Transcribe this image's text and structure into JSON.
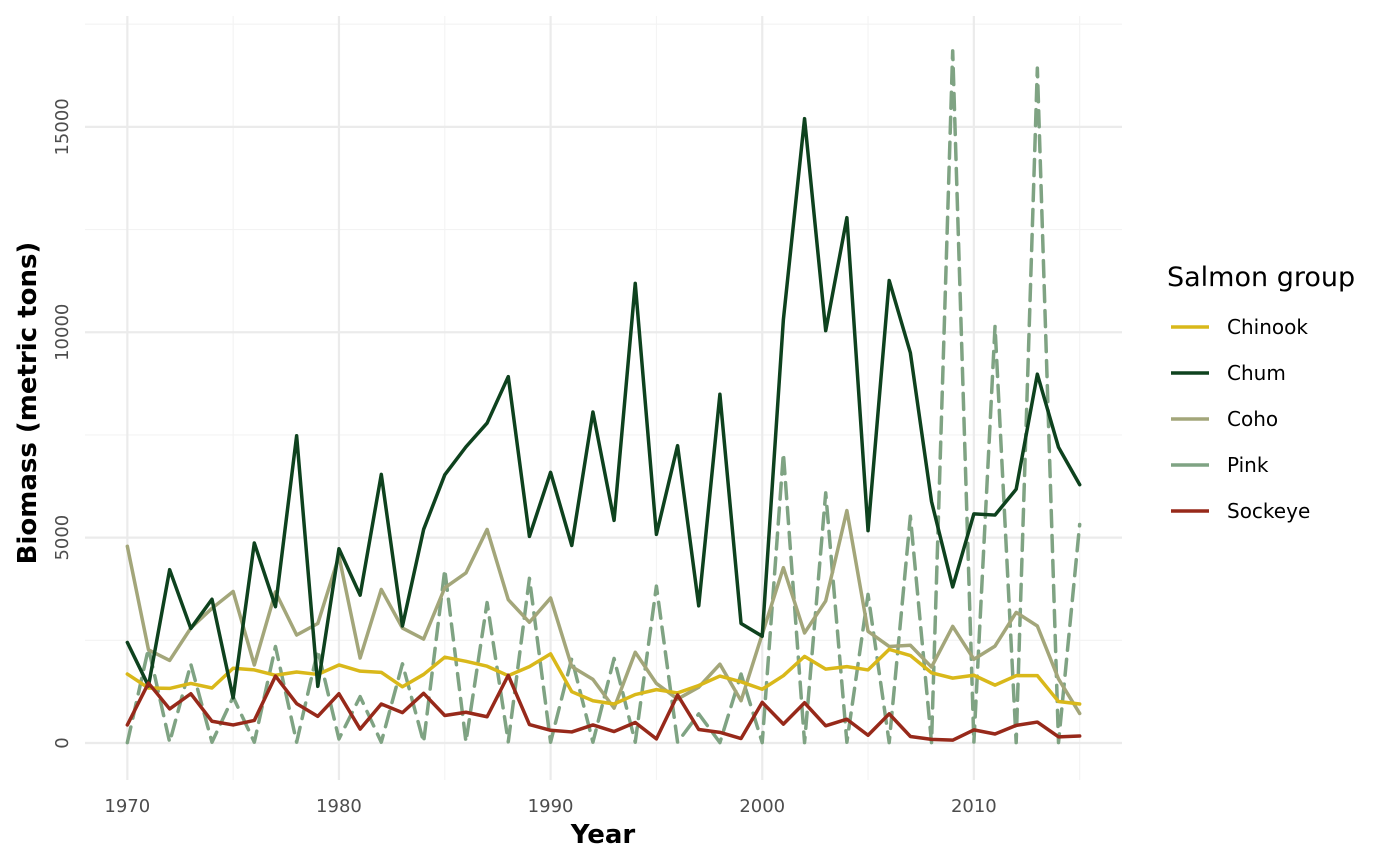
{
  "chart_data": {
    "type": "line",
    "xlabel": "Year",
    "ylabel": "Biomass (metric tons)",
    "xlim": [
      1968,
      2017
    ],
    "ylim": [
      -900,
      17700
    ],
    "x_ticks": [
      1970,
      1980,
      1990,
      2000,
      2010
    ],
    "y_ticks": [
      0,
      5000,
      10000,
      15000
    ],
    "grid": true,
    "legend": {
      "title": "Salmon group",
      "position": "right"
    },
    "x": [
      1970,
      1971,
      1972,
      1973,
      1974,
      1975,
      1976,
      1977,
      1978,
      1979,
      1980,
      1981,
      1982,
      1983,
      1984,
      1985,
      1986,
      1987,
      1988,
      1989,
      1990,
      1991,
      1992,
      1993,
      1994,
      1995,
      1996,
      1997,
      1998,
      1999,
      2000,
      2001,
      2002,
      2003,
      2004,
      2005,
      2006,
      2007,
      2008,
      2009,
      2010,
      2011,
      2012,
      2013,
      2014,
      2015
    ],
    "series": [
      {
        "name": "Chinook",
        "color": "#d9b81a",
        "dash": "solid",
        "values": [
          1680,
          1340,
          1330,
          1450,
          1340,
          1820,
          1780,
          1650,
          1730,
          1670,
          1900,
          1750,
          1720,
          1370,
          1670,
          2090,
          1990,
          1870,
          1640,
          1860,
          2170,
          1250,
          1030,
          950,
          1180,
          1300,
          1220,
          1400,
          1630,
          1490,
          1310,
          1640,
          2110,
          1800,
          1860,
          1780,
          2280,
          2130,
          1710,
          1580,
          1650,
          1410,
          1640,
          1640,
          1010,
          950
        ]
      },
      {
        "name": "Chum",
        "color": "#0e421e",
        "dash": "solid",
        "values": [
          2450,
          1390,
          4220,
          2790,
          3500,
          1100,
          4870,
          3320,
          7480,
          1380,
          4730,
          3600,
          6540,
          2850,
          5200,
          6530,
          7210,
          7790,
          8920,
          5030,
          6590,
          4810,
          8060,
          5420,
          11190,
          5080,
          7240,
          3340,
          8490,
          2910,
          2600,
          10310,
          15200,
          10040,
          12790,
          5170,
          11260,
          9500,
          5880,
          3800,
          5580,
          5550,
          6180,
          8980,
          7200,
          6290
        ]
      },
      {
        "name": "Coho",
        "color": "#a3a67a",
        "dash": "solid",
        "values": [
          4790,
          2270,
          2010,
          2800,
          3280,
          3690,
          1900,
          3680,
          2630,
          2910,
          4550,
          2070,
          3740,
          2800,
          2530,
          3780,
          4140,
          5200,
          3490,
          2940,
          3530,
          1860,
          1550,
          850,
          2210,
          1450,
          1070,
          1360,
          1920,
          1030,
          2650,
          4270,
          2680,
          3460,
          5660,
          2720,
          2350,
          2380,
          1850,
          2840,
          2040,
          2360,
          3180,
          2850,
          1560,
          720
        ]
      },
      {
        "name": "Pink",
        "color": "#7fa383",
        "dash": "dashed",
        "values": [
          10,
          2310,
          20,
          1920,
          20,
          1120,
          20,
          2350,
          20,
          2260,
          100,
          1130,
          20,
          1930,
          20,
          4220,
          30,
          3420,
          30,
          4010,
          20,
          2060,
          20,
          2060,
          20,
          3820,
          20,
          710,
          10,
          1680,
          10,
          7050,
          10,
          6090,
          20,
          3620,
          10,
          5520,
          10,
          16850,
          10,
          10140,
          10,
          16430,
          10,
          5320
        ]
      },
      {
        "name": "Sockeye",
        "color": "#97291a",
        "dash": "solid",
        "values": [
          440,
          1460,
          830,
          1200,
          530,
          440,
          550,
          1630,
          960,
          650,
          1200,
          340,
          950,
          740,
          1210,
          670,
          750,
          640,
          1650,
          450,
          310,
          270,
          440,
          280,
          500,
          100,
          1170,
          330,
          260,
          110,
          990,
          460,
          980,
          420,
          580,
          190,
          710,
          160,
          90,
          70,
          320,
          220,
          430,
          510,
          150,
          170
        ]
      }
    ]
  }
}
